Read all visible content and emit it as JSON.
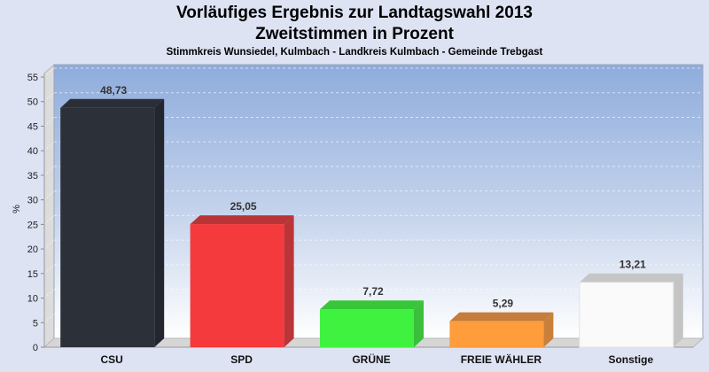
{
  "chart_data": {
    "type": "bar",
    "title": "Vorläufiges Ergebnis zur Landtagswahl 2013",
    "subtitle": "Zweitstimmen in Prozent",
    "subsubtitle": "Stimmkreis Wunsiedel, Kulmbach - Landkreis Kulmbach - Gemeinde Trebgast",
    "xlabel": "",
    "ylabel": "%",
    "ylim": [
      0,
      55
    ],
    "yticks": [
      "0",
      "5",
      "10",
      "15",
      "20",
      "25",
      "30",
      "35",
      "40",
      "45",
      "50",
      "55"
    ],
    "grid": true,
    "categories": [
      "CSU",
      "SPD",
      "GRÜNE",
      "FREIE WÄHLER",
      "Sonstige"
    ],
    "values": [
      48.73,
      25.05,
      7.72,
      5.29,
      13.21
    ],
    "value_labels": [
      "48,73",
      "25,05",
      "7,72",
      "5,29",
      "13,21"
    ],
    "colors": [
      "#2c3039",
      "#f53a3d",
      "#3ff23f",
      "#ff9c3b",
      "#fafafa"
    ],
    "side_colors": [
      "#23262e",
      "#bb3538",
      "#3cbf3c",
      "#c9803b",
      "#c4c4c4"
    ],
    "top_colors": [
      "#2a2e37",
      "#b93437",
      "#37c637",
      "#c57c3c",
      "#c6c6c6"
    ]
  }
}
